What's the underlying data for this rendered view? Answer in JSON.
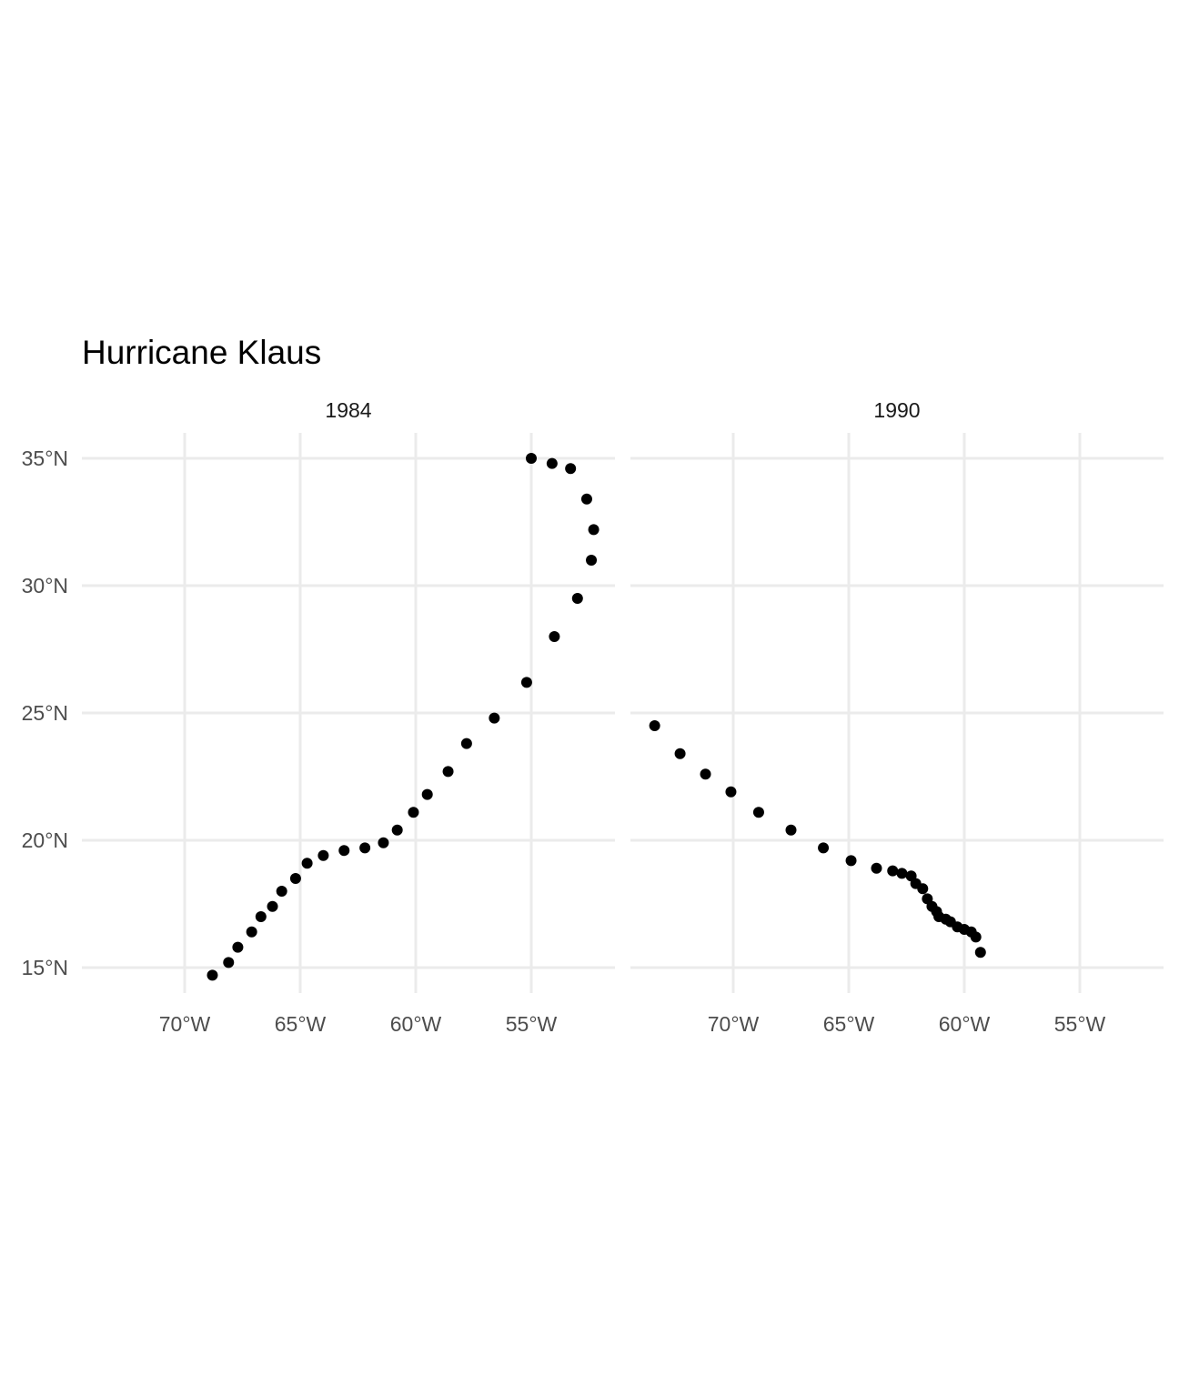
{
  "chart_data": {
    "type": "scatter",
    "title": "Hurricane Klaus",
    "xlabel": "",
    "ylabel": "",
    "grid": true,
    "legend": "none",
    "colors": {
      "point": "#000000",
      "grid": "#ebebeb",
      "tick_text": "#4d4d4d",
      "background": "#ffffff"
    },
    "xlim": [
      -74.5,
      -51.5
    ],
    "ylim": [
      14,
      36
    ],
    "x_ticks": [
      -70,
      -65,
      -60,
      -55
    ],
    "x_tick_labels": [
      "70°W",
      "65°W",
      "60°W",
      "55°W"
    ],
    "y_ticks": [
      15,
      20,
      25,
      30,
      35
    ],
    "y_tick_labels": [
      "15°N",
      "20°N",
      "25°N",
      "30°N",
      "35°N"
    ],
    "panels": [
      {
        "label": "1984",
        "points": [
          {
            "x": -68.8,
            "y": 14.7
          },
          {
            "x": -68.1,
            "y": 15.2
          },
          {
            "x": -67.7,
            "y": 15.8
          },
          {
            "x": -67.1,
            "y": 16.4
          },
          {
            "x": -66.7,
            "y": 17.0
          },
          {
            "x": -66.2,
            "y": 17.4
          },
          {
            "x": -65.8,
            "y": 18.0
          },
          {
            "x": -65.2,
            "y": 18.5
          },
          {
            "x": -64.7,
            "y": 19.1
          },
          {
            "x": -64.0,
            "y": 19.4
          },
          {
            "x": -63.1,
            "y": 19.6
          },
          {
            "x": -62.2,
            "y": 19.7
          },
          {
            "x": -61.4,
            "y": 19.9
          },
          {
            "x": -60.8,
            "y": 20.4
          },
          {
            "x": -60.1,
            "y": 21.1
          },
          {
            "x": -59.5,
            "y": 21.8
          },
          {
            "x": -58.6,
            "y": 22.7
          },
          {
            "x": -57.8,
            "y": 23.8
          },
          {
            "x": -56.6,
            "y": 24.8
          },
          {
            "x": -55.2,
            "y": 26.2
          },
          {
            "x": -54.0,
            "y": 28.0
          },
          {
            "x": -53.0,
            "y": 29.5
          },
          {
            "x": -52.4,
            "y": 31.0
          },
          {
            "x": -52.3,
            "y": 32.2
          },
          {
            "x": -52.6,
            "y": 33.4
          },
          {
            "x": -53.3,
            "y": 34.6
          },
          {
            "x": -54.1,
            "y": 34.8
          },
          {
            "x": -55.0,
            "y": 35.0
          }
        ]
      },
      {
        "label": "1990",
        "points": [
          {
            "x": -73.4,
            "y": 24.5
          },
          {
            "x": -72.3,
            "y": 23.4
          },
          {
            "x": -71.2,
            "y": 22.6
          },
          {
            "x": -70.1,
            "y": 21.9
          },
          {
            "x": -68.9,
            "y": 21.1
          },
          {
            "x": -67.5,
            "y": 20.4
          },
          {
            "x": -66.1,
            "y": 19.7
          },
          {
            "x": -64.9,
            "y": 19.2
          },
          {
            "x": -63.8,
            "y": 18.9
          },
          {
            "x": -63.1,
            "y": 18.8
          },
          {
            "x": -62.7,
            "y": 18.7
          },
          {
            "x": -62.3,
            "y": 18.6
          },
          {
            "x": -62.1,
            "y": 18.3
          },
          {
            "x": -61.8,
            "y": 18.1
          },
          {
            "x": -61.6,
            "y": 17.7
          },
          {
            "x": -61.4,
            "y": 17.4
          },
          {
            "x": -61.2,
            "y": 17.2
          },
          {
            "x": -61.1,
            "y": 17.0
          },
          {
            "x": -60.8,
            "y": 16.9
          },
          {
            "x": -60.6,
            "y": 16.8
          },
          {
            "x": -60.3,
            "y": 16.6
          },
          {
            "x": -60.0,
            "y": 16.5
          },
          {
            "x": -59.7,
            "y": 16.4
          },
          {
            "x": -59.5,
            "y": 16.2
          },
          {
            "x": -59.3,
            "y": 15.6
          }
        ]
      }
    ]
  }
}
